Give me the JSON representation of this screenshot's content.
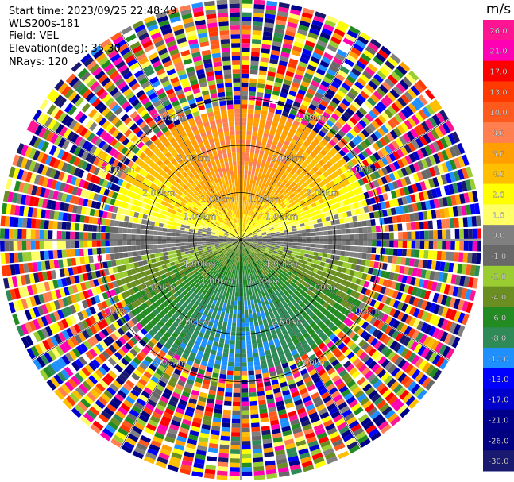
{
  "info": {
    "start_time": "Start time: 2023/09/25 22:48:49",
    "instrument": "WLS200s-181",
    "field": "Field: VEL",
    "elevation": "Elevation(deg): 35.30",
    "nrays": "NRays: 120"
  },
  "chart_data": {
    "type": "heatmap",
    "subtype": "polar-ppi",
    "field": "VEL",
    "units": "m/s",
    "nrays": 120,
    "range_rings_km": [
      1.0,
      2.0,
      3.0
    ],
    "ring_labels": [
      "1.00km",
      "2.00km",
      "3.00km"
    ],
    "colorbar": {
      "label": "m/s",
      "ticks": [
        "26.0",
        "21.0",
        "17.0",
        "13.0",
        "10.0",
        "8.0",
        "6.0",
        "4.0",
        "2.0",
        "1.0",
        "0.0",
        "-1.0",
        "-2.0",
        "-4.0",
        "-6.0",
        "-8.0",
        "-10.0",
        "-13.0",
        "-17.0",
        "-21.0",
        "-26.0",
        "-30.0"
      ],
      "colors": [
        "#ff1493",
        "#ff00b4",
        "#ff0000",
        "#ff3a00",
        "#ff5a1e",
        "#ff7f50",
        "#ff9f00",
        "#ffbf00",
        "#ffff00",
        "#ffff66",
        "#808080",
        "#696969",
        "#9acd32",
        "#6b8e23",
        "#228b22",
        "#2e8b57",
        "#1e90ff",
        "#0000ff",
        "#0000cd",
        "#00008b",
        "#000080",
        "#191970"
      ]
    },
    "velocity_pattern": {
      "upper_half": "positive (receding) velocities 1 to 8 m/s, highest near north",
      "lower_half": "negative (approaching) velocities -1 to -8 m/s, most negative near south",
      "beyond_range_km": 2.8
    }
  }
}
